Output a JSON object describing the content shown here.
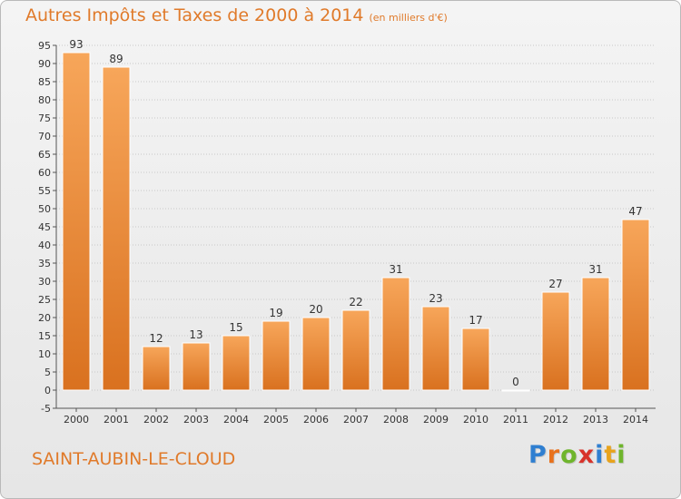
{
  "title": "Autres Impôts et Taxes de 2000 à 2014",
  "unit_label": "(en milliers d'€)",
  "commune": "SAINT-AUBIN-LE-CLOUD",
  "brand": {
    "letters": [
      "P",
      "r",
      "o",
      "x",
      "i",
      "t",
      "i"
    ],
    "colors": [
      "#2f7fd1",
      "#e8711c",
      "#6fb52c",
      "#d8322a",
      "#2f7fd1",
      "#e8a31c",
      "#6fb52c"
    ]
  },
  "colors": {
    "bar_top": "#f7a65a",
    "bar_bottom": "#d9711f",
    "title": "#e07a2a",
    "grid": "#c8c8c8",
    "text": "#333333"
  },
  "chart_data": {
    "type": "bar",
    "categories": [
      "2000",
      "2001",
      "2002",
      "2003",
      "2004",
      "2005",
      "2006",
      "2007",
      "2008",
      "2009",
      "2010",
      "2011",
      "2012",
      "2013",
      "2014"
    ],
    "values": [
      93,
      89,
      12,
      13,
      15,
      19,
      20,
      22,
      31,
      23,
      17,
      0,
      27,
      31,
      47
    ],
    "ylim": [
      -5,
      95
    ],
    "yticks": [
      "-5",
      "0",
      "5",
      "10",
      "15",
      "20",
      "25",
      "30",
      "35",
      "40",
      "45",
      "50",
      "55",
      "60",
      "65",
      "70",
      "75",
      "80",
      "85",
      "90",
      "95"
    ],
    "grid": true,
    "data_labels": true
  }
}
